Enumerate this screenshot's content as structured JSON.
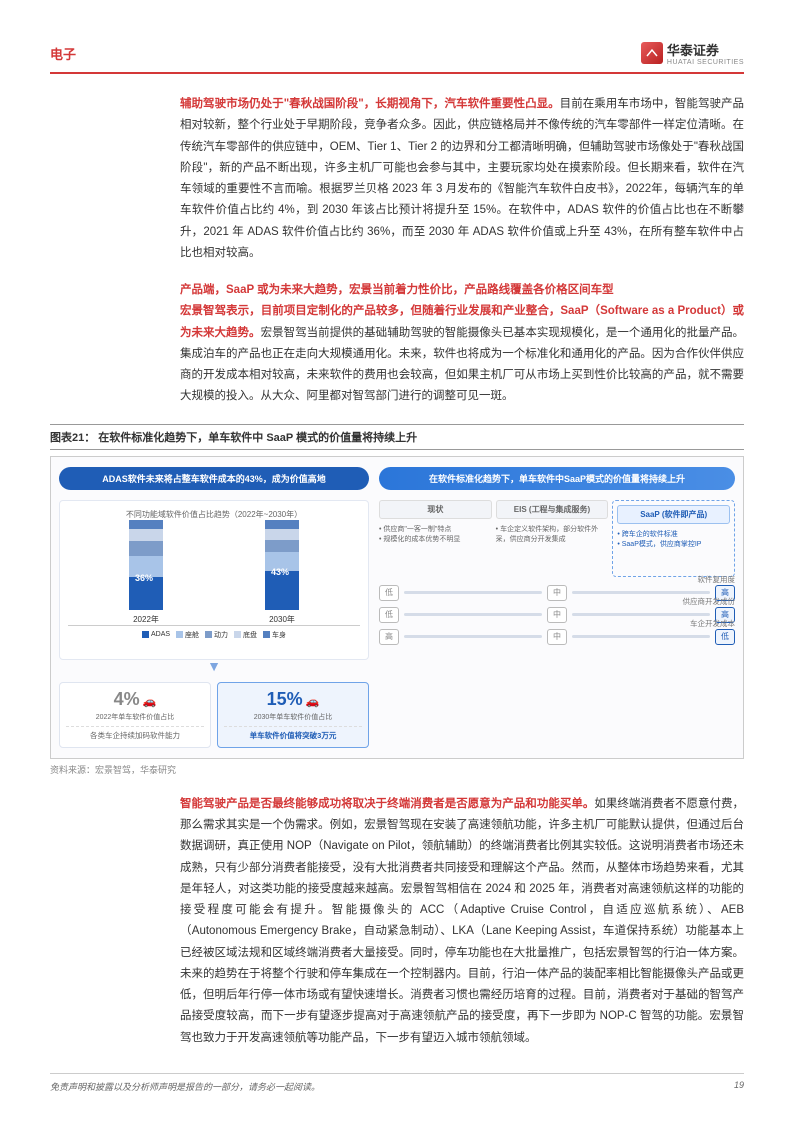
{
  "header": {
    "section": "电子",
    "company": "华泰证券",
    "company_en": "HUATAI SECURITIES"
  },
  "p1": {
    "lead": "辅助驾驶市场仍处于\"春秋战国阶段\"，长期视角下，汽车软件重要性凸显。",
    "body": "目前在乘用车市场中，智能驾驶产品相对较新，整个行业处于早期阶段，竞争者众多。因此，供应链格局并不像传统的汽车零部件一样定位清晰。在传统汽车零部件的供应链中，OEM、Tier 1、Tier 2 的边界和分工都清晰明确，但辅助驾驶市场像处于\"春秋战国阶段\"，新的产品不断出现，许多主机厂可能也会参与其中，主要玩家均处在摸索阶段。但长期来看，软件在汽车领域的重要性不言而喻。根据罗兰贝格 2023 年 3 月发布的《智能汽车软件白皮书》，2022年，每辆汽车的单车软件价值占比约 4%，到 2030 年该占比预计将提升至 15%。在软件中，ADAS 软件的价值占比也在不断攀升，2021 年 ADAS 软件价值占比约 36%，而至 2030 年 ADAS 软件价值或上升至 43%，在所有整车软件中占比也相对较高。"
  },
  "p2": {
    "lead": "产品端，SaaP 或为未来大趋势，宏景当前着力性价比，产品路线覆盖各价格区间车型",
    "sub": "宏景智驾表示，目前项目定制化的产品较多，但随着行业发展和产业整合，SaaP（Software as a Product）或为未来大趋势。",
    "body": "宏景智驾当前提供的基础辅助驾驶的智能摄像头已基本实现规模化，是一个通用化的批量产品。集成泊车的产品也正在走向大规模通用化。未来，软件也将成为一个标准化和通用化的产品。因为合作伙伴供应商的开发成本相对较高，未来软件的费用也会较高，但如果主机厂可从市场上买到性价比较高的产品，就不需要大规模的投入。从大众、阿里都对智驾部门进行的调整可见一斑。"
  },
  "figure": {
    "caption": "图表21： 在软件标准化趋势下，单车软件中 SaaP 模式的价值量将持续上升",
    "left_title": "ADAS软件未来将占整车软件成本的43%，成为价值高地",
    "right_title": "在软件标准化趋势下，单车软件中SaaP模式的价值量将持续上升",
    "chart": {
      "title": "不同功能域软件价值占比趋势（2022年~2030年）",
      "categories": [
        "2022年",
        "2030年"
      ],
      "series": [
        "ADAS",
        "座舱",
        "动力",
        "底盘",
        "车身"
      ],
      "colors": [
        "#1f5db6",
        "#a8c4e8",
        "#7d9cc9",
        "#c9d6ea",
        "#5580c0"
      ],
      "stacks": [
        [
          36,
          24,
          16,
          14,
          10
        ],
        [
          43,
          21,
          14,
          12,
          10
        ]
      ],
      "labels": [
        "36%",
        "43%"
      ]
    },
    "stats": [
      {
        "num": "4%",
        "label": "2022年单车软件价值占比",
        "sub": "各类车企持续加码软件能力",
        "color": "#888"
      },
      {
        "num": "15%",
        "label": "2030年单车软件价值占比",
        "sub": "单车软件价值将突破3万元",
        "color": "#1f5db6",
        "active": true
      }
    ],
    "modes": {
      "cols": [
        "现状",
        "EIS (工程与集成服务)",
        "SaaP (软件即产品)"
      ],
      "desc": [
        "• 供应商\"一客一制\"特点\n• 规模化的成本优势不明显",
        "• 车企定义软件架构，部分软件外采，供应商分开发集成\n",
        "• 跨车企的软件标准\n• SaaP模式，供应商掌控IP"
      ],
      "scales": [
        {
          "label": "软件复用度",
          "marks": [
            "低",
            "中",
            "高"
          ],
          "hi": 2
        },
        {
          "label": "供应商开发成份",
          "marks": [
            "低",
            "中",
            "高"
          ],
          "hi": 2
        },
        {
          "label": "车企开发成本",
          "marks": [
            "高",
            "中",
            "低"
          ],
          "hi": 2
        }
      ]
    },
    "source": "资料来源：宏景智驾，华泰研究"
  },
  "p3": {
    "lead": "智能驾驶产品是否最终能够成功将取决于终端消费者是否愿意为产品和功能买单。",
    "body": "如果终端消费者不愿意付费，那么需求其实是一个伪需求。例如，宏景智驾现在安装了高速领航功能，许多主机厂可能默认提供，但通过后台数据调研，真正使用 NOP（Navigate on Pilot，领航辅助）的终端消费者比例其实较低。这说明消费者市场还未成熟，只有少部分消费者能接受，没有大批消费者共同接受和理解这个产品。然而，从整体市场趋势来看，尤其是年轻人，对这类功能的接受度越来越高。宏景智驾相信在 2024 和 2025 年，消费者对高速领航这样的功能的接受程度可能会有提升。智能摄像头的 ACC（Adaptive Cruise Control，自适应巡航系统）、AEB（Autonomous Emergency Brake，自动紧急制动）、LKA（Lane Keeping Assist，车道保持系统）功能基本上已经被区域法规和区域终端消费者大量接受。同时，停车功能也在大批量推广，包括宏景智驾的行泊一体方案。未来的趋势在于将整个行驶和停车集成在一个控制器内。目前，行泊一体产品的装配率相比智能摄像头产品或更低，但明后年行停一体市场或有望快速增长。消费者习惯也需经历培育的过程。目前，消费者对于基础的智驾产品接受度较高，而下一步有望逐步提高对于高速领航产品的接受度，再下一步即为 NOP-C 智驾的功能。宏景智驾也致力于开发高速领航等功能产品，下一步有望迈入城市领航领域。"
  },
  "footer": {
    "disclaimer": "免责声明和披露以及分析师声明是报告的一部分，请务必一起阅读。",
    "page": "19"
  }
}
